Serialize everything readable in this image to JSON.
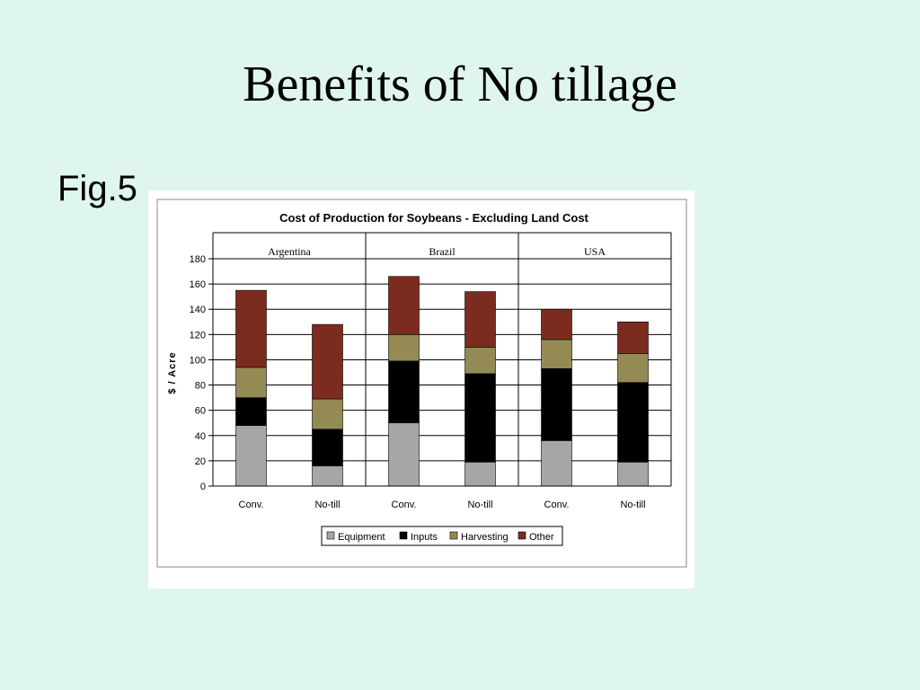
{
  "slide": {
    "title": "Benefits of No tillage",
    "fig_label": "Fig.5"
  },
  "chart_data": {
    "type": "bar",
    "stacked": true,
    "title": "Cost of Production for Soybeans - Excluding Land Cost",
    "ylabel": "$ / Acre",
    "xlabel": "",
    "ylim": [
      0,
      180
    ],
    "yticks": [
      0,
      20,
      40,
      60,
      80,
      100,
      120,
      140,
      160,
      180
    ],
    "grid": true,
    "legend_position": "bottom",
    "groups": [
      {
        "label": "Argentina",
        "categories": [
          "Conv.",
          "No-till"
        ]
      },
      {
        "label": "Brazil",
        "categories": [
          "Conv.",
          "No-till"
        ]
      },
      {
        "label": "USA",
        "categories": [
          "Conv.",
          "No-till"
        ]
      }
    ],
    "categories": [
      "Conv.",
      "No-till",
      "Conv.",
      "No-till",
      "Conv.",
      "No-till"
    ],
    "series": [
      {
        "name": "Equipment",
        "color": "#a6a6a6",
        "values": [
          48,
          16,
          50,
          19,
          36,
          19
        ]
      },
      {
        "name": "Inputs",
        "color": "#000000",
        "values": [
          22,
          29,
          49,
          70,
          57,
          63
        ]
      },
      {
        "name": "Harvesting",
        "color": "#948a54",
        "values": [
          24,
          24,
          21,
          21,
          23,
          23
        ]
      },
      {
        "name": "Other",
        "color": "#7b2c1e",
        "values": [
          61,
          59,
          46,
          44,
          24,
          25
        ]
      }
    ]
  }
}
